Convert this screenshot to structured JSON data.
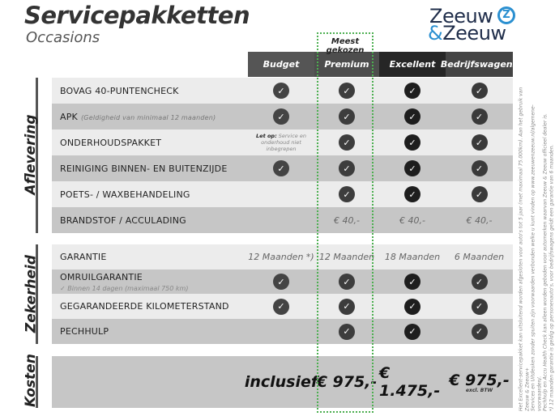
{
  "header": {
    "title": "Servicepakketten",
    "subtitle": "Occasions",
    "logo": {
      "line1": "Zeeuw",
      "amp": "&",
      "line2": "Zeeuw",
      "mark": "Z"
    }
  },
  "highlight_label": "Meest gekozen",
  "colors": {
    "highlight": "#4caf50",
    "logo_blue": "#2a8fd0",
    "row_light": "#ececec",
    "row_dark": "#c6c6c6"
  },
  "columns": [
    {
      "label": "Budget",
      "bg": "#555555",
      "check": "#444444"
    },
    {
      "label": "Premium",
      "bg": "#4d4d4d",
      "check": "#3d3d3d"
    },
    {
      "label": "Excellent",
      "bg": "#262626",
      "check": "#1e1e1e"
    },
    {
      "label": "Bedrijfswagens",
      "bg": "#444444",
      "check": "#3a3a3a"
    }
  ],
  "sections": [
    {
      "label": "Aflevering",
      "rows": [
        {
          "label": "BOVAG 40-PUNTENCHECK",
          "cells": [
            {
              "t": "check"
            },
            {
              "t": "check"
            },
            {
              "t": "check"
            },
            {
              "t": "check"
            }
          ]
        },
        {
          "label": "APK",
          "note": "(Geldigheid van minimaal 12 maanden)",
          "cells": [
            {
              "t": "check"
            },
            {
              "t": "check"
            },
            {
              "t": "check"
            },
            {
              "t": "check"
            }
          ]
        },
        {
          "label": "ONDERHOUDSPAKKET",
          "cells": [
            {
              "t": "note",
              "bold": "Let op:",
              "v": "Service en onderhoud niet inbegrepen"
            },
            {
              "t": "check"
            },
            {
              "t": "check"
            },
            {
              "t": "check"
            }
          ]
        },
        {
          "label": "REINIGING BINNEN- EN BUITENZIJDE",
          "cells": [
            {
              "t": "check"
            },
            {
              "t": "check"
            },
            {
              "t": "check"
            },
            {
              "t": "check"
            }
          ]
        },
        {
          "label": "POETS- / WAXBEHANDELING",
          "cells": [
            {
              "t": "none"
            },
            {
              "t": "check"
            },
            {
              "t": "check"
            },
            {
              "t": "check"
            }
          ]
        },
        {
          "label": "BRANDSTOF / ACCULADING",
          "cells": [
            {
              "t": "none"
            },
            {
              "t": "text",
              "v": "€ 40,-"
            },
            {
              "t": "text",
              "v": "€ 40,-"
            },
            {
              "t": "text",
              "v": "€ 40,-"
            }
          ]
        }
      ]
    },
    {
      "label": "Zekerheid",
      "rows": [
        {
          "label": "GARANTIE",
          "cells": [
            {
              "t": "text",
              "v": "12 Maanden *)"
            },
            {
              "t": "text",
              "v": "12 Maanden"
            },
            {
              "t": "text",
              "v": "18 Maanden"
            },
            {
              "t": "text",
              "v": "6 Maanden"
            }
          ]
        },
        {
          "label": "OMRUILGARANTIE",
          "sub": "✓   Binnen 14 dagen (maximaal 750 km)",
          "cells": [
            {
              "t": "check"
            },
            {
              "t": "check"
            },
            {
              "t": "check"
            },
            {
              "t": "check"
            }
          ]
        },
        {
          "label": "GEGARANDEERDE KILOMETERSTAND",
          "cells": [
            {
              "t": "check"
            },
            {
              "t": "check"
            },
            {
              "t": "check"
            },
            {
              "t": "check"
            }
          ]
        },
        {
          "label": "PECHHULP",
          "cells": [
            {
              "t": "none"
            },
            {
              "t": "check"
            },
            {
              "t": "check"
            },
            {
              "t": "check"
            }
          ]
        }
      ]
    },
    {
      "label": "Kosten",
      "rows": [
        {
          "label": "",
          "cells": [
            {
              "t": "price",
              "v": "inclusief"
            },
            {
              "t": "price",
              "v": "€ 975,-"
            },
            {
              "t": "price",
              "v": "€ 1.475,-"
            },
            {
              "t": "price",
              "v": "€ 975,-",
              "sub": "excl. BTW"
            }
          ]
        }
      ]
    }
  ],
  "footnote": [
    "Het Excellent-servicepakket kan uitsluitend worden afgesloten voor auto's tot 5 jaar (met maximaal 75.000km). Aan het gebruik van Zeeuw & Zeeuw+",
    "Services en Uitdeuken zonder spuiten zijn voorwaarden verbonden welke u kunt vinden op www.zeeuwenzeeuw.nl/algemene-voorwaarden/.",
    "Pechhulp en Accu Health Check kan alleen worden geboden voor automerken waarvan Zeeuw & Zeeuw officieel dealer is.",
    "*) 12 maanden garantie is geldig op personenauto's, voor bedrijfswagens geldt een garantie van 6 maanden."
  ]
}
